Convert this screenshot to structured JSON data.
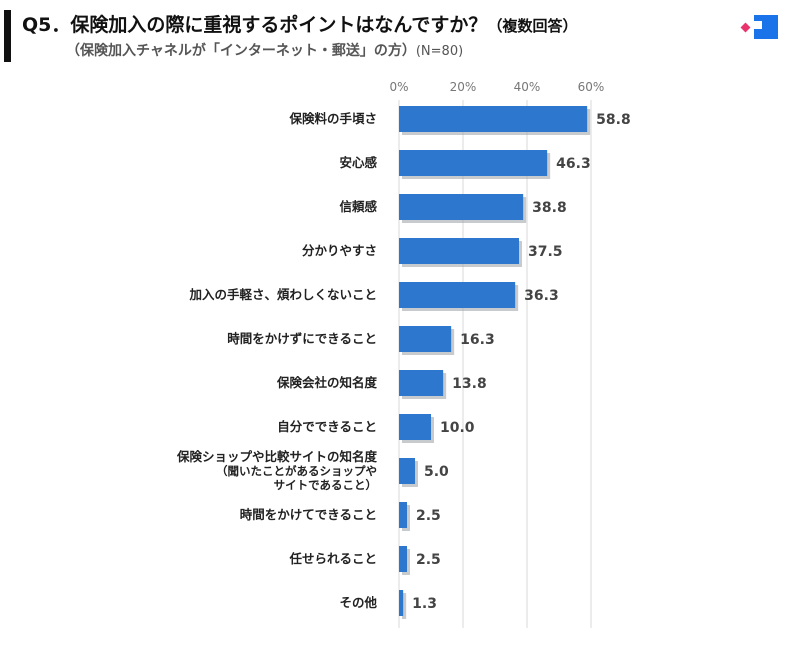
{
  "header": {
    "title": "Q5．保険加入の際に重視するポイントはなんですか？",
    "title_note": "（複数回答）",
    "subtitle": "（保険加入チャネルが「インターネット・郵送」の方）",
    "sample": "(N=80)"
  },
  "colors": {
    "bar": "#2d77cf",
    "shadow": "#9aa0a6",
    "grid": "#d9d9d9",
    "logo_blue": "#1a73e8",
    "logo_pink": "#e8336d"
  },
  "chart_data": {
    "type": "bar",
    "orientation": "horizontal",
    "categories": [
      [
        "保険料の手頃さ"
      ],
      [
        "安心感"
      ],
      [
        "信頼感"
      ],
      [
        "分かりやすさ"
      ],
      [
        "加入の手軽さ、煩わしくないこと"
      ],
      [
        "時間をかけずにできること"
      ],
      [
        "保険会社の知名度"
      ],
      [
        "自分でできること"
      ],
      [
        "保険ショップや比較サイトの知名度",
        "（聞いたことがあるショップや",
        "サイトであること）"
      ],
      [
        "時間をかけてできること"
      ],
      [
        "任せられること"
      ],
      [
        "その他"
      ]
    ],
    "values": [
      58.8,
      46.3,
      38.8,
      37.5,
      36.3,
      16.3,
      13.8,
      10.0,
      5.0,
      2.5,
      2.5,
      1.3
    ],
    "value_labels": [
      "58.8",
      "46.3",
      "38.8",
      "37.5",
      "36.3",
      "16.3",
      "13.8",
      "10.0",
      "5.0",
      "2.5",
      "2.5",
      "1.3"
    ],
    "ticks": [
      0,
      20,
      40,
      60
    ],
    "tick_labels": [
      "0%",
      "20%",
      "40%",
      "60%"
    ],
    "xlim": [
      0,
      60
    ],
    "grid": true,
    "legend": "none"
  }
}
